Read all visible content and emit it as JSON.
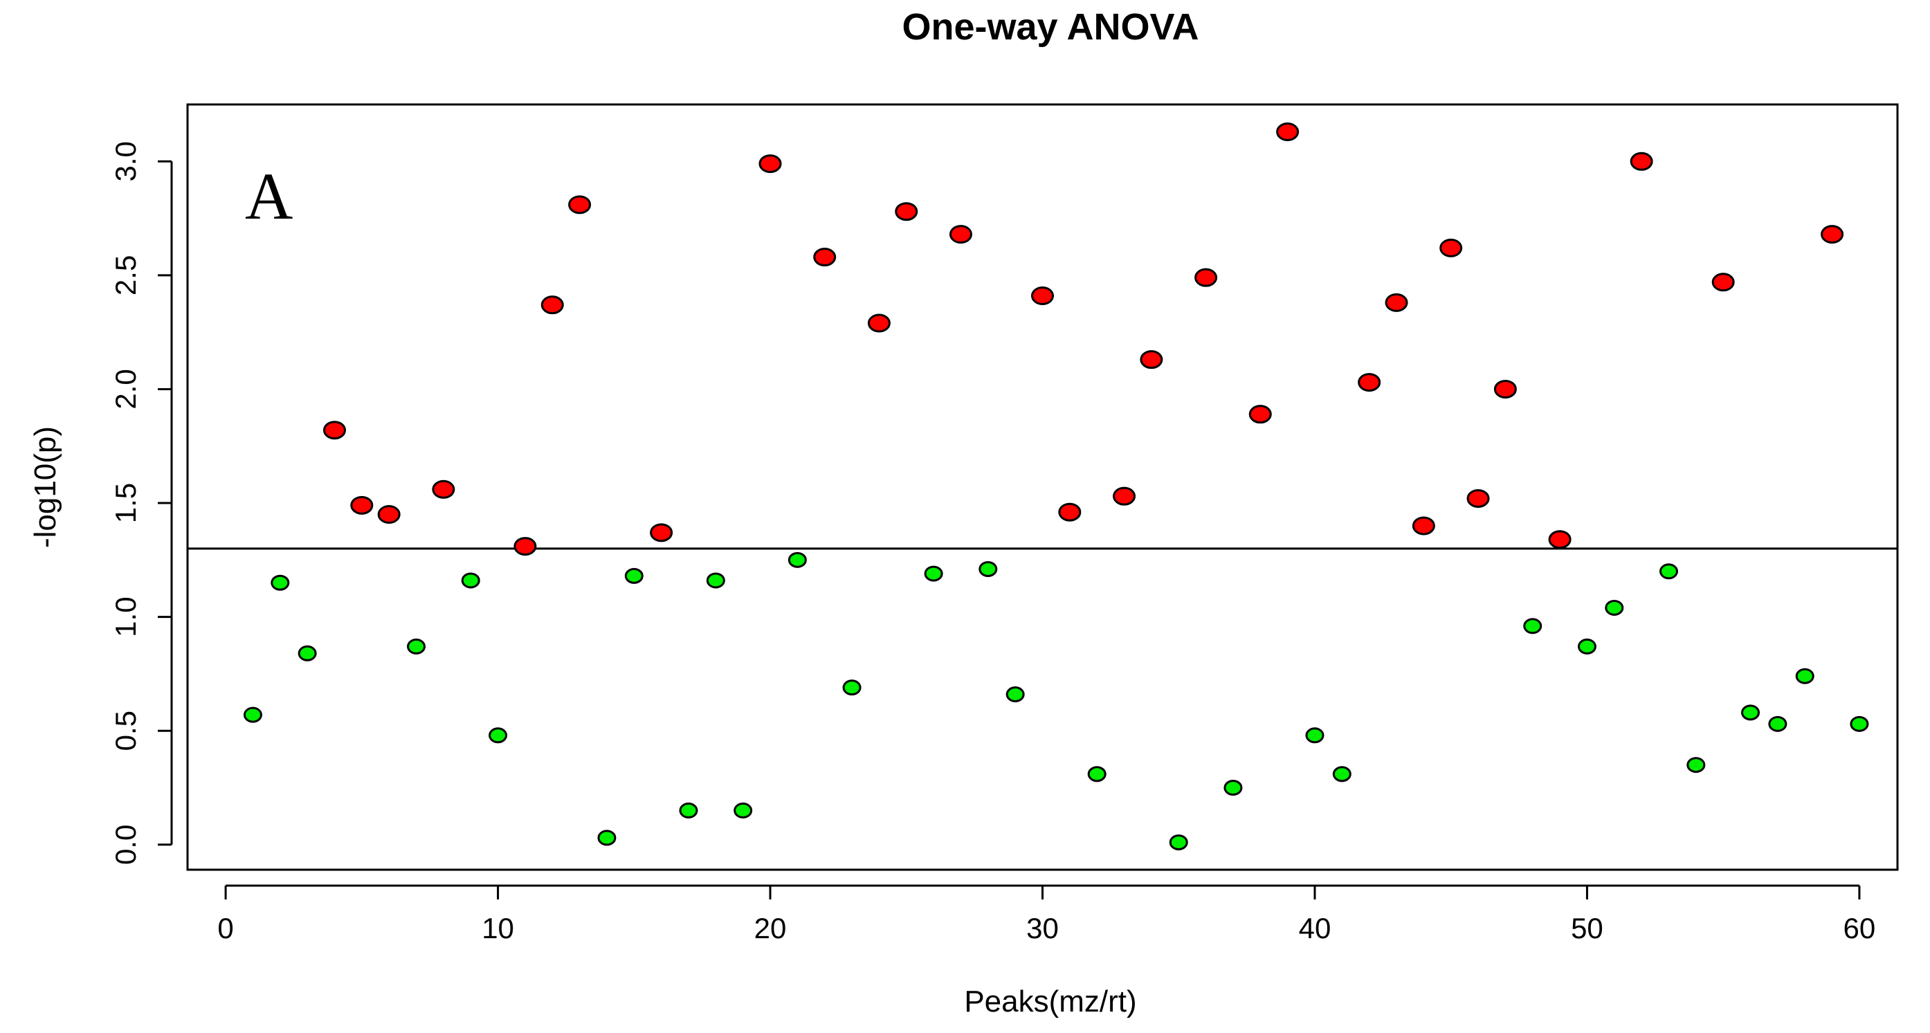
{
  "chart_data": {
    "type": "scatter",
    "title": "One-way ANOVA",
    "panel_label": "A",
    "xlabel": "Peaks(mz/rt)",
    "ylabel": "-log10(p)",
    "xlim": [
      -1.4,
      61.4
    ],
    "ylim": [
      -0.11,
      3.25
    ],
    "x_ticks": [
      0,
      10,
      20,
      30,
      40,
      50,
      60
    ],
    "x_tick_labels": [
      "0",
      "10",
      "20",
      "30",
      "40",
      "50",
      "60"
    ],
    "y_ticks": [
      0.0,
      0.5,
      1.0,
      1.5,
      2.0,
      2.5,
      3.0
    ],
    "y_tick_labels": [
      "0.0",
      "0.5",
      "1.0",
      "1.5",
      "2.0",
      "2.5",
      "3.0"
    ],
    "threshold": 1.3,
    "colors": {
      "significant": "#ff0000",
      "not_significant": "#00ee00"
    },
    "x": [
      1,
      2,
      3,
      4,
      5,
      6,
      7,
      8,
      9,
      10,
      11,
      12,
      13,
      14,
      15,
      16,
      17,
      18,
      19,
      20,
      21,
      22,
      23,
      24,
      25,
      26,
      27,
      28,
      29,
      30,
      31,
      32,
      33,
      34,
      35,
      36,
      37,
      38,
      39,
      40,
      41,
      42,
      43,
      44,
      45,
      46,
      47,
      48,
      49,
      50,
      51,
      52,
      53,
      54,
      55,
      56,
      57,
      58,
      59,
      60
    ],
    "y": [
      0.57,
      1.15,
      0.84,
      1.82,
      1.49,
      1.45,
      0.87,
      1.56,
      1.16,
      0.48,
      1.31,
      2.37,
      2.81,
      0.03,
      1.18,
      1.37,
      0.15,
      1.16,
      0.15,
      2.99,
      1.25,
      2.58,
      0.69,
      2.29,
      2.78,
      1.19,
      2.68,
      1.21,
      0.66,
      2.41,
      1.46,
      0.31,
      1.53,
      2.13,
      0.01,
      2.49,
      0.25,
      1.89,
      3.13,
      0.48,
      0.31,
      2.03,
      2.38,
      1.4,
      2.62,
      1.52,
      2.0,
      0.96,
      1.34,
      0.87,
      1.04,
      3.0,
      1.2,
      0.35,
      2.47,
      0.58,
      0.53,
      0.74,
      2.68,
      0.53
    ]
  }
}
